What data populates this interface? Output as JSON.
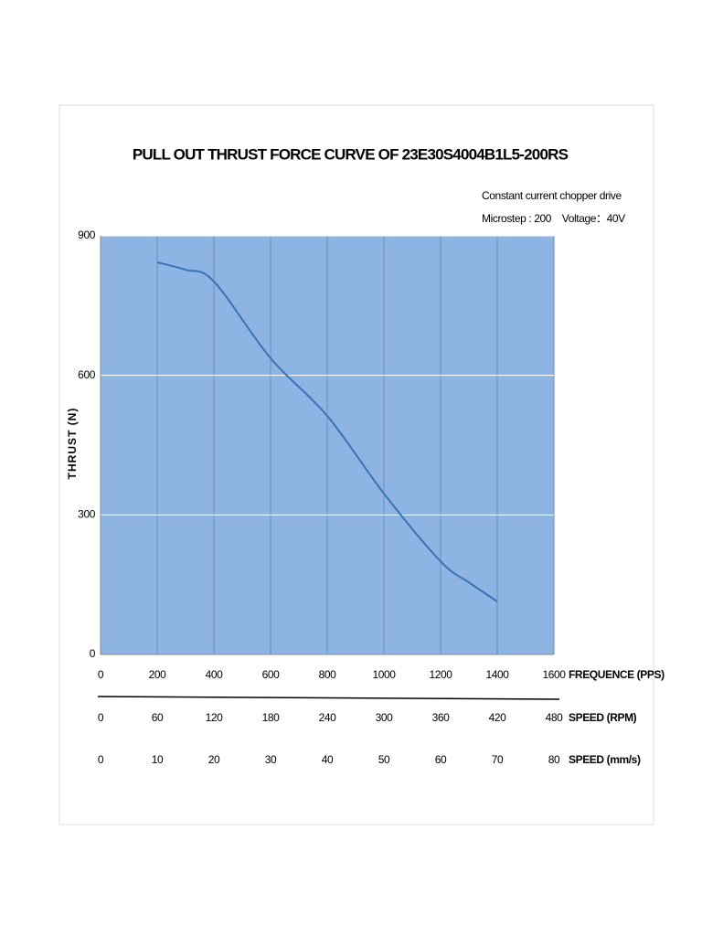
{
  "chart_data": {
    "type": "line",
    "title": "PULL OUT THRUST FORCE CURVE OF 23E30S4004B1L5-200RS",
    "annotations": [
      "Constant current chopper drive",
      "Microstep : 200    Voltage：40V"
    ],
    "xlabel": "FREQUENCE (PPS)",
    "ylabel": "THRUST (N)",
    "x": [
      200,
      300,
      400,
      600,
      800,
      1000,
      1200,
      1300,
      1400
    ],
    "values": [
      843,
      827,
      802,
      637,
      513,
      346,
      200,
      155,
      114
    ],
    "color": "#3a73b5",
    "plot_background": "#8db4e2",
    "xlim": [
      0,
      1600
    ],
    "xticks": [
      0,
      200,
      400,
      600,
      800,
      1000,
      1200,
      1400,
      1600
    ],
    "ylim": [
      0,
      900
    ],
    "yticks": [
      0,
      300,
      600,
      900
    ],
    "grid": true,
    "speed_rpm_label": "SPEED (RPM)",
    "speed_rpm_ticks": [
      0,
      60,
      120,
      180,
      240,
      300,
      360,
      420,
      480
    ],
    "speed_mms_label": "SPEED (mm/s)",
    "speed_mms_ticks": [
      0,
      10,
      20,
      30,
      40,
      50,
      60,
      70,
      80
    ]
  }
}
